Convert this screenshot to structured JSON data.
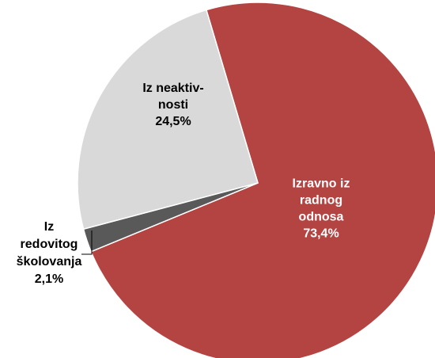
{
  "chart_data": {
    "type": "pie",
    "start_angle_deg": -16.6,
    "direction": "clockwise",
    "slices": [
      {
        "label_lines": [
          "Izravno iz",
          "radnog",
          "odnosa"
        ],
        "value": 73.4,
        "value_label": "73,4%",
        "color": "#b44442",
        "label_color": "#ffffff",
        "label_placement": "inside"
      },
      {
        "label_lines": [
          "Iz",
          "redovitog",
          "školovanja"
        ],
        "value": 2.1,
        "value_label": "2,1%",
        "color": "#595959",
        "label_color": "#000000",
        "label_placement": "outside-with-leader"
      },
      {
        "label_lines": [
          "Iz neaktiv-",
          "nosti"
        ],
        "value": 24.5,
        "value_label": "24,5%",
        "color": "#d9d9d9",
        "label_color": "#000000",
        "label_placement": "inside"
      }
    ],
    "slice_border_color": "#ffffff"
  }
}
